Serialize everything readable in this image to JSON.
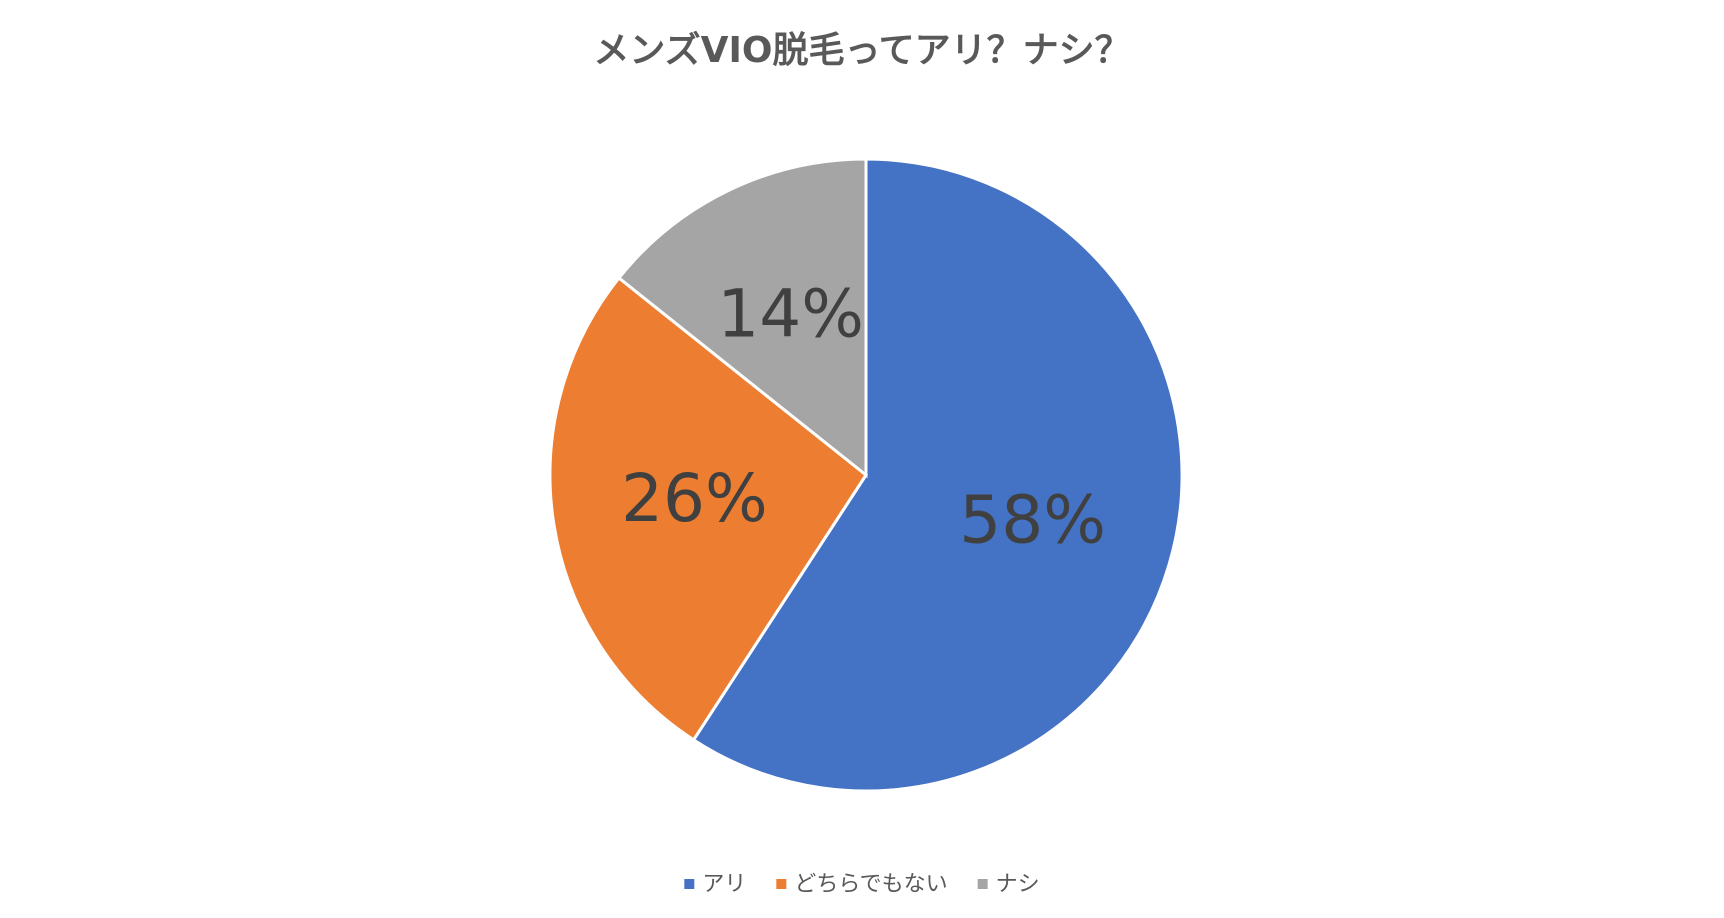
{
  "chart_data": {
    "type": "pie",
    "title": "メンズVIO脱毛ってアリ？ナシ？",
    "categories": [
      "アリ",
      "どちらでもない",
      "ナシ"
    ],
    "values": [
      58,
      26,
      14
    ],
    "value_labels": [
      "58%",
      "26%",
      "14%"
    ],
    "colors": [
      "#4472c4",
      "#ed7d31",
      "#a5a5a5"
    ],
    "legend": "bottom"
  }
}
